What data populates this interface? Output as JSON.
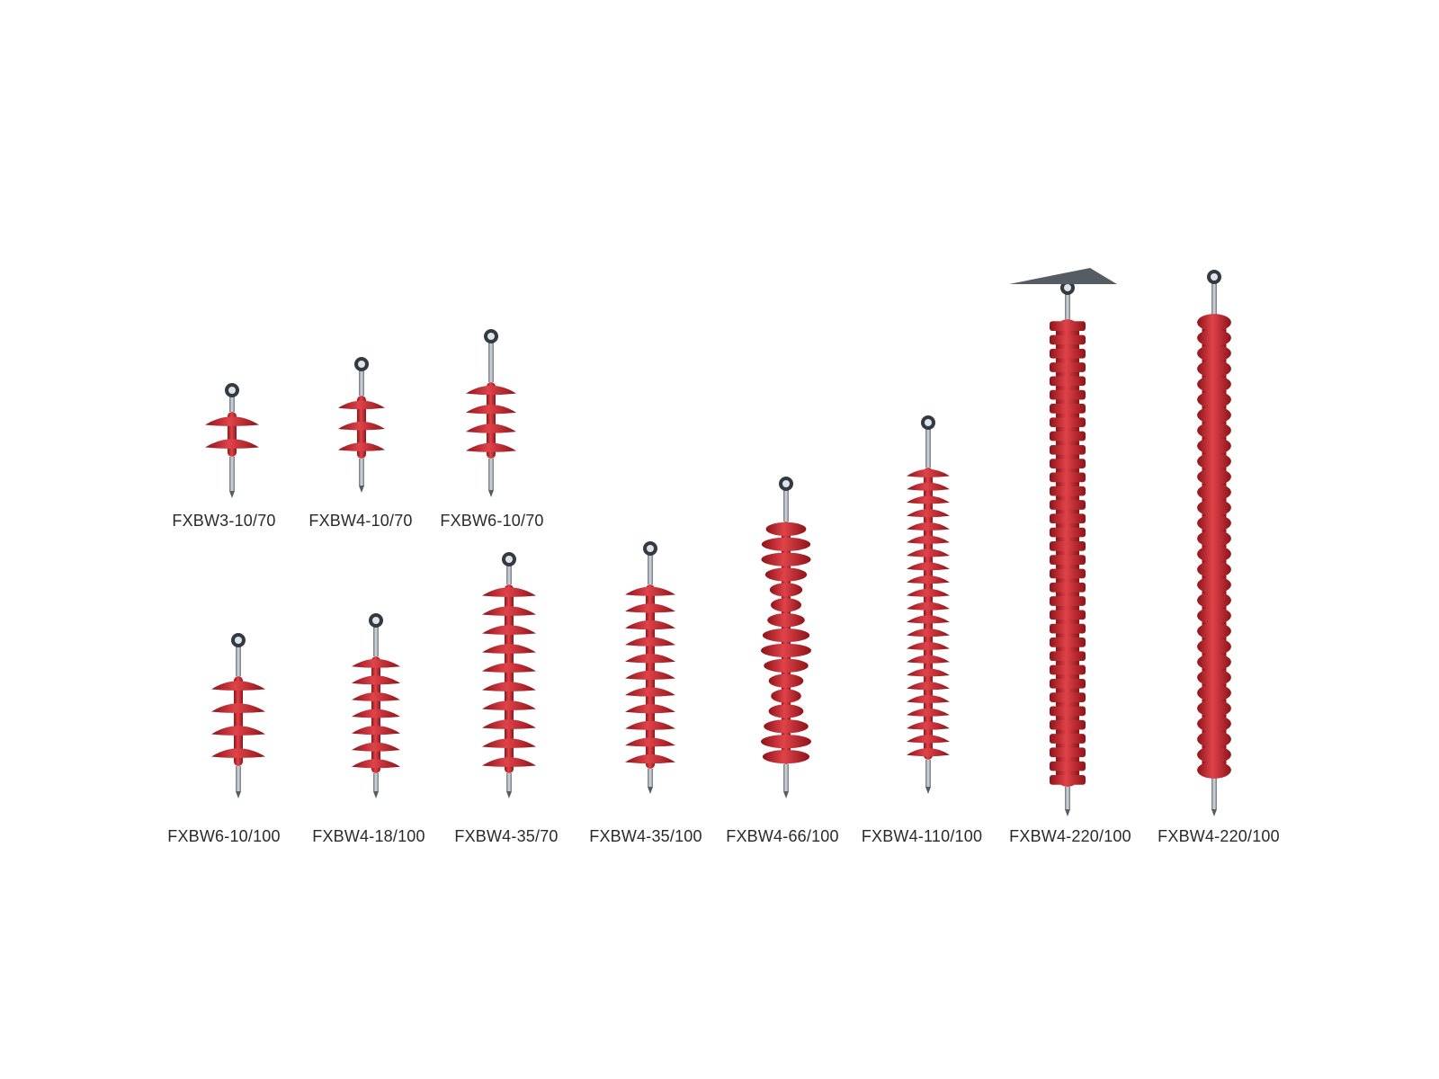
{
  "colors": {
    "rubber": "#c0222a",
    "rubber_dark": "#8e1419",
    "rubber_light": "#e0434a",
    "metal": "#9aa3ad",
    "fitting_dark": "#333a42"
  },
  "rows": [
    {
      "items": [
        {
          "label": "FXBW3-10/70",
          "sheds": 2,
          "style": "disc"
        },
        {
          "label": "FXBW4-10/70",
          "sheds": 3,
          "style": "disc"
        },
        {
          "label": "FXBW6-10/70",
          "sheds": 4,
          "style": "disc"
        }
      ]
    },
    {
      "items": [
        {
          "label": "FXBW6-10/100",
          "sheds": 4,
          "style": "disc"
        },
        {
          "label": "FXBW4-18/100",
          "sheds": 7,
          "style": "disc"
        },
        {
          "label": "FXBW4-35/70",
          "sheds": 10,
          "style": "disc"
        },
        {
          "label": "FXBW4-35/100",
          "sheds": 11,
          "style": "disc"
        },
        {
          "label": "FXBW4-66/100",
          "sheds": 16,
          "style": "stack"
        },
        {
          "label": "FXBW4-110/100",
          "sheds": 22,
          "style": "disc"
        },
        {
          "label": "FXBW4-220/100",
          "sheds": 34,
          "style": "dense"
        },
        {
          "label": "FXBW4-220/100",
          "sheds": 30,
          "style": "wave"
        }
      ]
    }
  ]
}
